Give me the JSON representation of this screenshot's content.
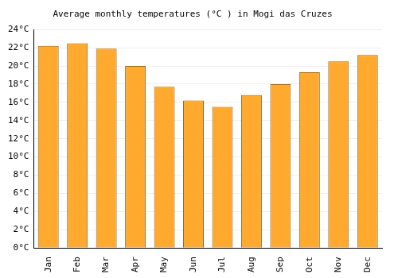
{
  "chart_data": {
    "type": "bar",
    "title": "Average monthly temperatures (°C ) in Mogi das Cruzes",
    "categories": [
      "Jan",
      "Feb",
      "Mar",
      "Apr",
      "May",
      "Jun",
      "Jul",
      "Aug",
      "Sep",
      "Oct",
      "Nov",
      "Dec"
    ],
    "values": [
      22.2,
      22.5,
      21.9,
      20.0,
      17.7,
      16.2,
      15.5,
      16.8,
      18.0,
      19.3,
      20.5,
      21.2
    ],
    "color": "#ffa92e",
    "ylim": [
      0,
      24
    ],
    "yticks": [
      {
        "value": 0,
        "label": "0°C"
      },
      {
        "value": 2,
        "label": "2°C"
      },
      {
        "value": 4,
        "label": "4°C"
      },
      {
        "value": 6,
        "label": "6°C"
      },
      {
        "value": 8,
        "label": "8°C"
      },
      {
        "value": 10,
        "label": "10°C"
      },
      {
        "value": 12,
        "label": "12°C"
      },
      {
        "value": 14,
        "label": "14°C"
      },
      {
        "value": 16,
        "label": "16°C"
      },
      {
        "value": 18,
        "label": "18°C"
      },
      {
        "value": 20,
        "label": "20°C"
      },
      {
        "value": 22,
        "label": "22°C"
      },
      {
        "value": 24,
        "label": "24°C"
      }
    ],
    "grid": true
  }
}
